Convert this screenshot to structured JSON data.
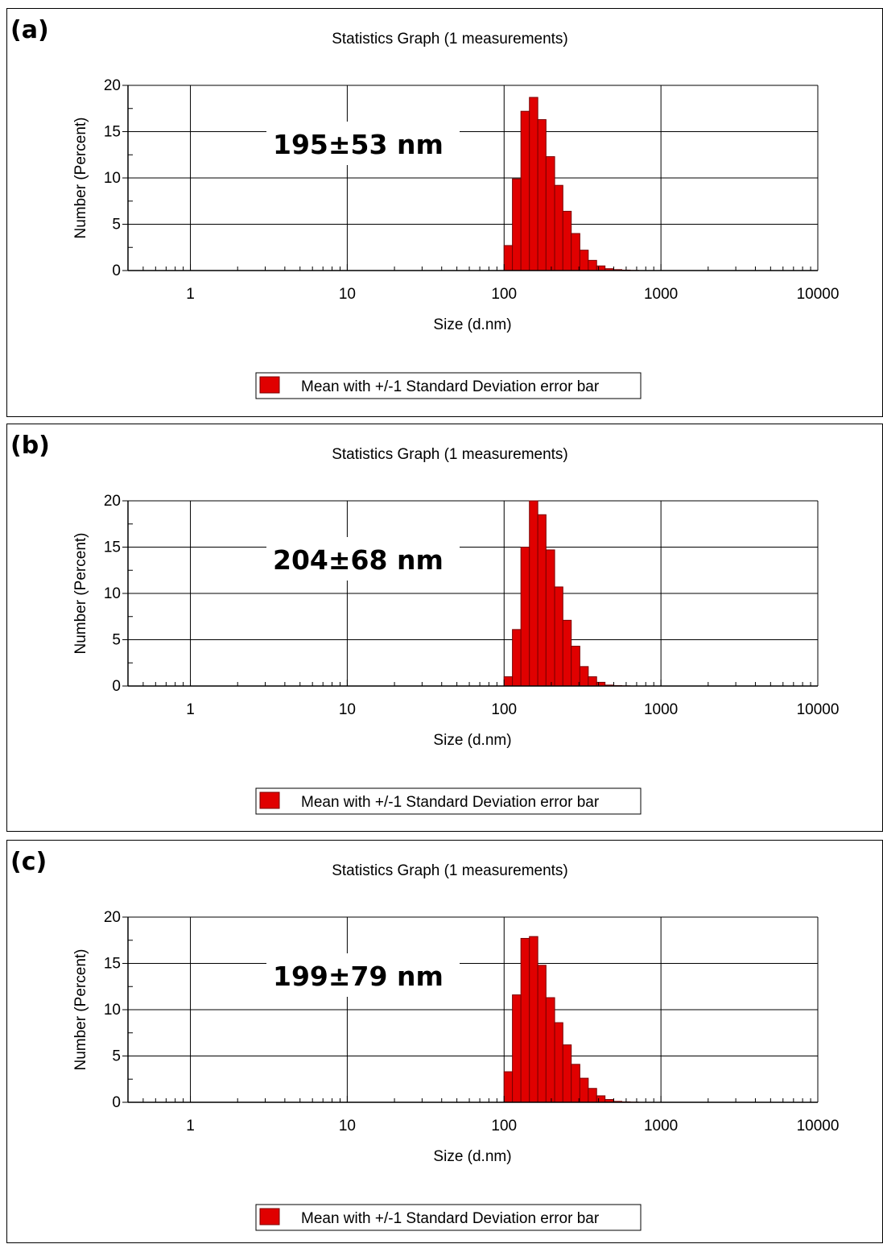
{
  "colors": {
    "bar_fill": "#e00000",
    "bar_stroke": "#7a0000",
    "axis": "#000000",
    "grid": "#000000",
    "background": "#ffffff"
  },
  "chart_data": [
    {
      "type": "bar",
      "panel_label": "(a)",
      "title": "Statistics Graph (1 measurements)",
      "xlabel": "Size (d.nm)",
      "ylabel": "Number (Percent)",
      "xscale": "log",
      "xlim": [
        0.4,
        10000
      ],
      "ylim": [
        0,
        20
      ],
      "xticks": [
        1,
        10,
        100,
        1000,
        10000
      ],
      "xtick_labels": [
        "1",
        "10",
        "100",
        "1000",
        "10000"
      ],
      "yticks": [
        0,
        5,
        10,
        15,
        20
      ],
      "ytick_labels": [
        "0",
        "5",
        "10",
        "15",
        "20"
      ],
      "grid": true,
      "annotation": "195±53 nm",
      "legend": {
        "label": "Mean with +/-1 Standard Deviation error bar",
        "position": "bottom-center"
      },
      "bin_edges": [
        100,
        113,
        128,
        145,
        164,
        185,
        210,
        237,
        268,
        304,
        344,
        389,
        440,
        498,
        563,
        637,
        721
      ],
      "values": [
        2.7,
        9.9,
        17.2,
        18.7,
        16.3,
        12.3,
        9.2,
        6.4,
        4.0,
        2.2,
        1.1,
        0.5,
        0.2,
        0.1,
        0.05,
        0.02
      ]
    },
    {
      "type": "bar",
      "panel_label": "(b)",
      "title": "Statistics Graph (1 measurements)",
      "xlabel": "Size (d.nm)",
      "ylabel": "Number (Percent)",
      "xscale": "log",
      "xlim": [
        0.4,
        10000
      ],
      "ylim": [
        0,
        20
      ],
      "xticks": [
        1,
        10,
        100,
        1000,
        10000
      ],
      "xtick_labels": [
        "1",
        "10",
        "100",
        "1000",
        "10000"
      ],
      "yticks": [
        0,
        5,
        10,
        15,
        20
      ],
      "ytick_labels": [
        "0",
        "5",
        "10",
        "15",
        "20"
      ],
      "grid": true,
      "annotation": "204±68 nm",
      "legend": {
        "label": "Mean with +/-1 Standard Deviation error bar",
        "position": "bottom-center"
      },
      "bin_edges": [
        100,
        113,
        128,
        145,
        164,
        185,
        210,
        237,
        268,
        304,
        344,
        389,
        440,
        498,
        563,
        637
      ],
      "values": [
        1.0,
        6.1,
        15.0,
        20.0,
        18.5,
        14.7,
        10.7,
        7.1,
        4.3,
        2.1,
        1.0,
        0.4,
        0.1,
        0.05,
        0.02
      ]
    },
    {
      "type": "bar",
      "panel_label": "(c)",
      "title": "Statistics Graph (1 measurements)",
      "xlabel": "Size (d.nm)",
      "ylabel": "Number (Percent)",
      "xscale": "log",
      "xlim": [
        0.4,
        10000
      ],
      "ylim": [
        0,
        20
      ],
      "xticks": [
        1,
        10,
        100,
        1000,
        10000
      ],
      "xtick_labels": [
        "1",
        "10",
        "100",
        "1000",
        "10000"
      ],
      "yticks": [
        0,
        5,
        10,
        15,
        20
      ],
      "ytick_labels": [
        "0",
        "5",
        "10",
        "15",
        "20"
      ],
      "grid": true,
      "annotation": "199±79 nm",
      "legend": {
        "label": "Mean with +/-1 Standard Deviation error bar",
        "position": "bottom-center"
      },
      "bin_edges": [
        100,
        113,
        128,
        145,
        164,
        185,
        210,
        237,
        268,
        304,
        344,
        389,
        440,
        498,
        563,
        637,
        721
      ],
      "values": [
        3.3,
        11.6,
        17.7,
        17.9,
        14.8,
        11.3,
        8.6,
        6.2,
        4.1,
        2.6,
        1.5,
        0.7,
        0.3,
        0.1,
        0.05,
        0.02
      ]
    }
  ]
}
